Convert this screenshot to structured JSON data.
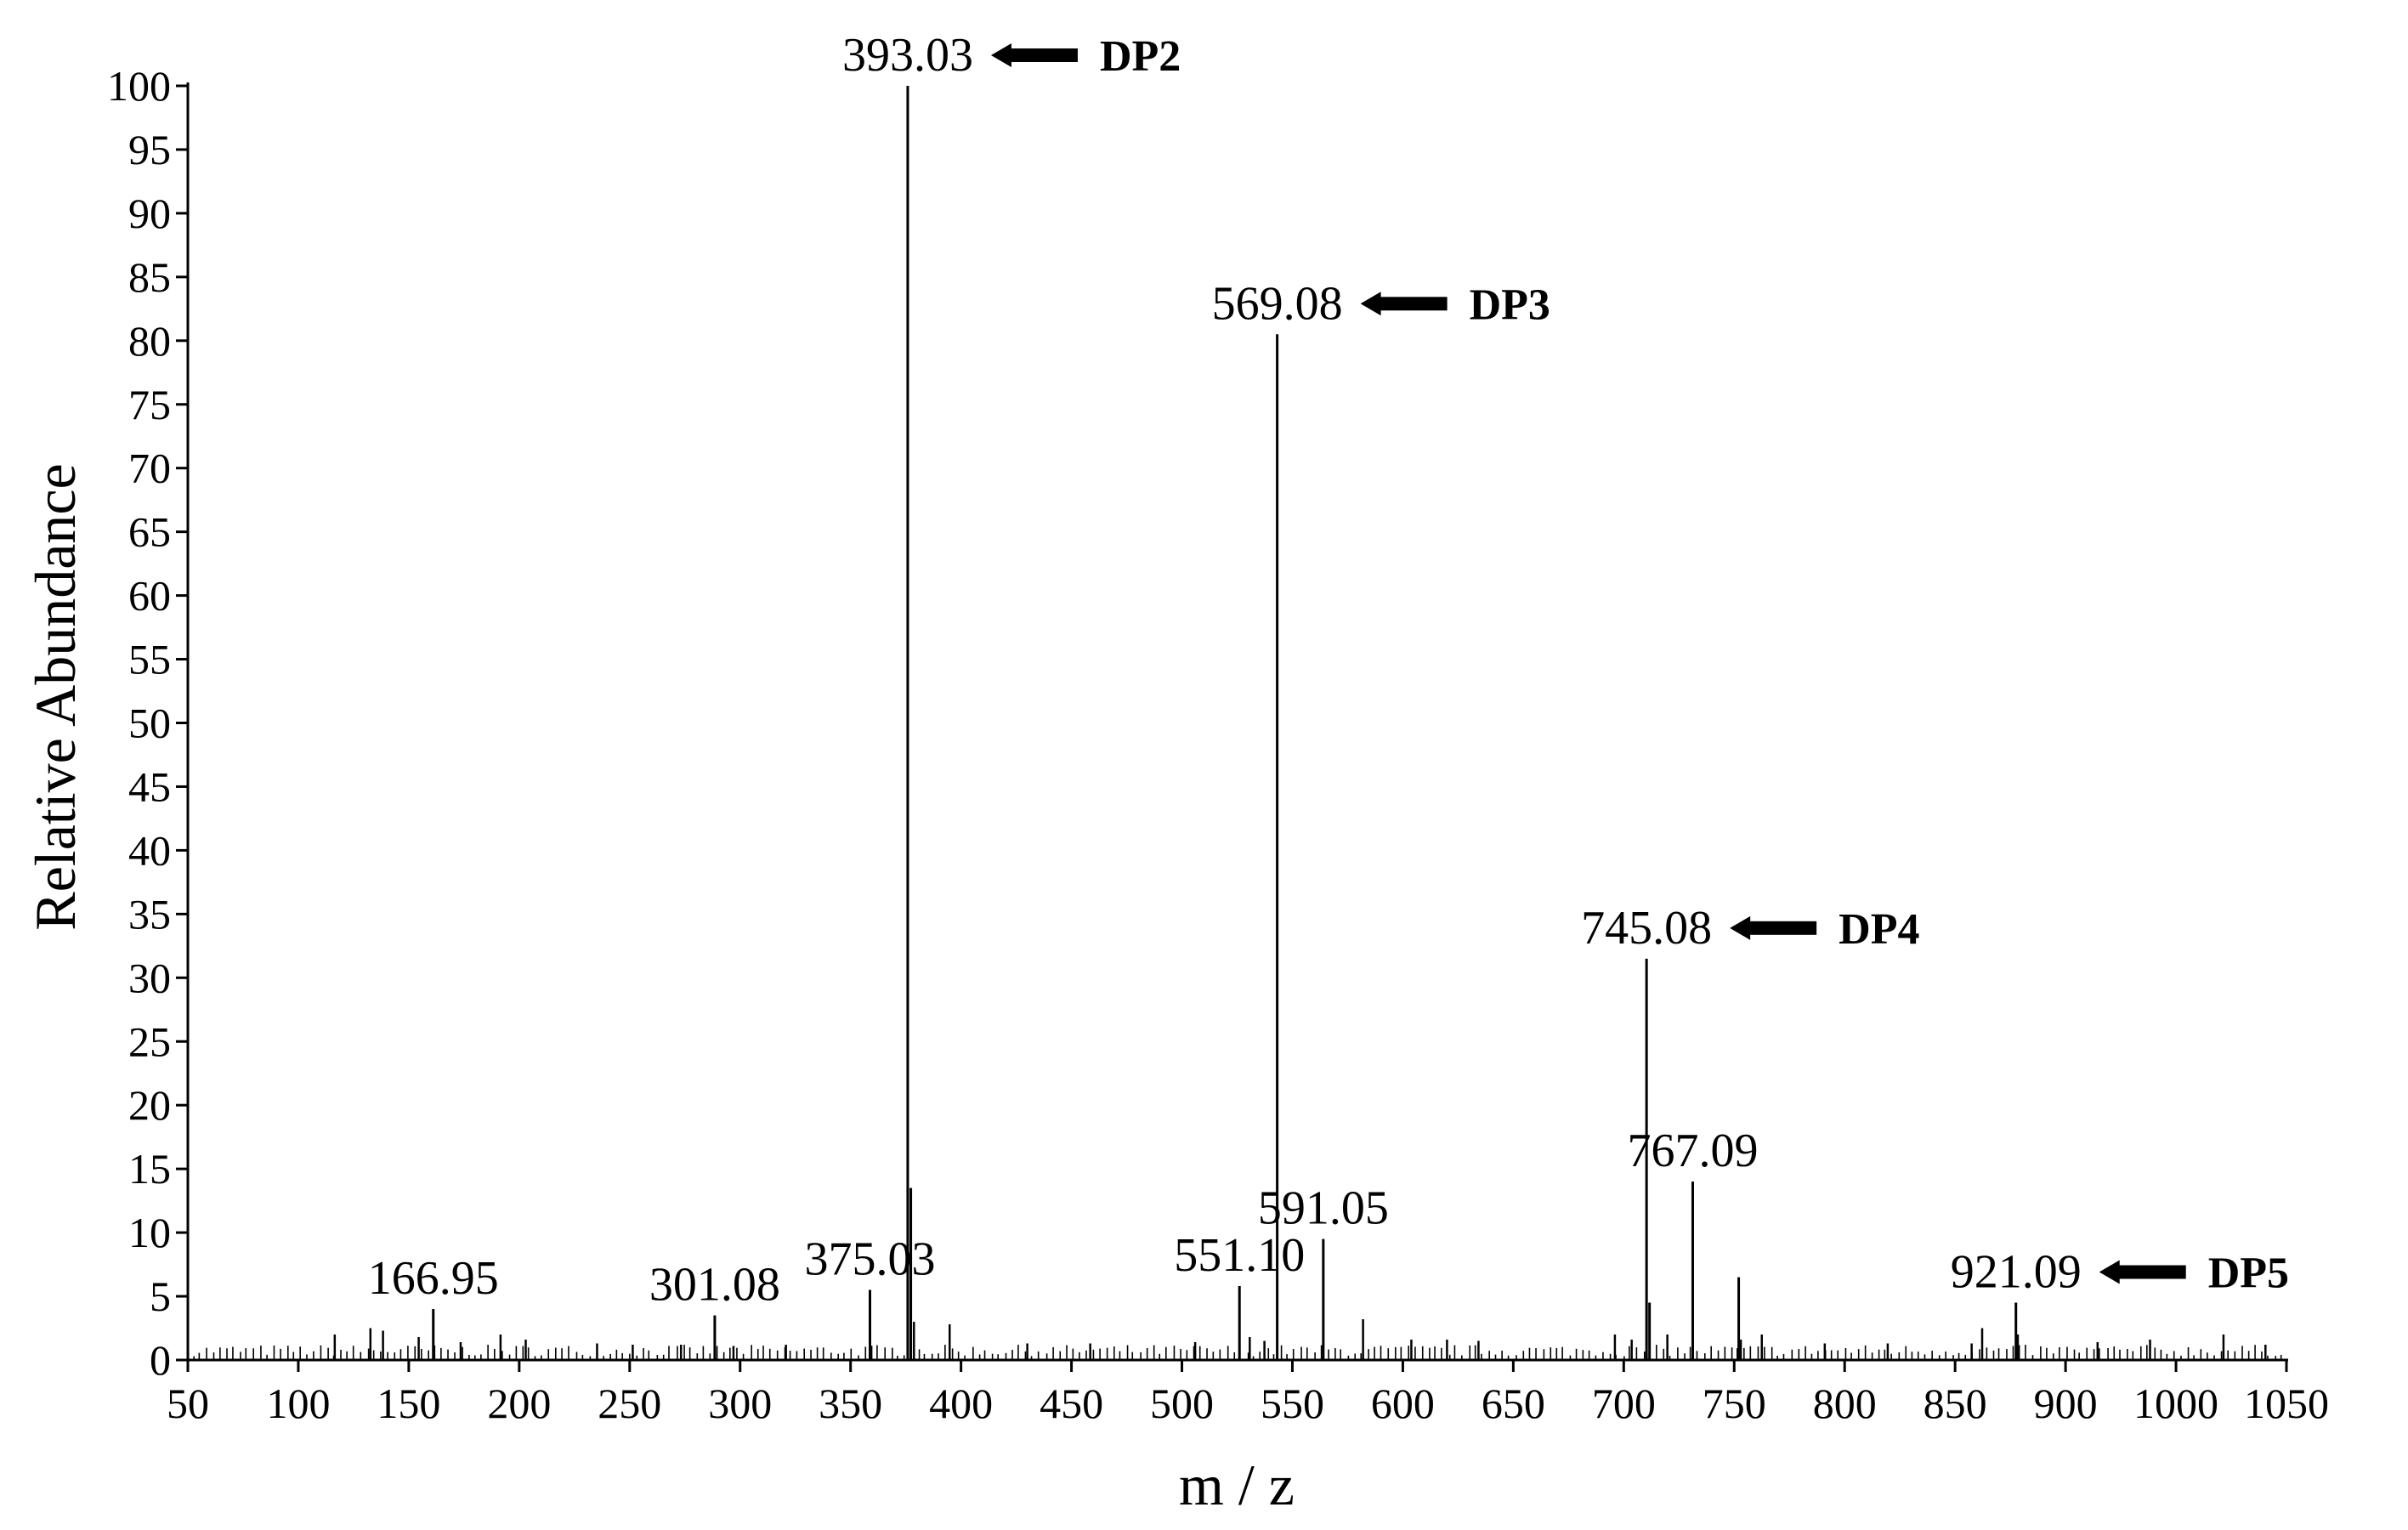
{
  "chart_data": {
    "type": "bar",
    "title": "",
    "xlabel": "m / z",
    "ylabel": "Relative Abundance",
    "xlim": [
      50,
      1050
    ],
    "ylim": [
      0,
      100
    ],
    "x_ticks": [
      50,
      100,
      150,
      200,
      250,
      300,
      350,
      400,
      450,
      500,
      550,
      600,
      650,
      700,
      750,
      800,
      850,
      900,
      1000,
      1050
    ],
    "x_tick_labels": [
      "50",
      "100",
      "150",
      "200",
      "250",
      "300",
      "350",
      "400",
      "450",
      "500",
      "550",
      "600",
      "650",
      "700",
      "750",
      "800",
      "850",
      "900",
      "1000",
      "1050"
    ],
    "y_ticks": [
      0,
      5,
      10,
      15,
      20,
      25,
      30,
      35,
      40,
      45,
      50,
      55,
      60,
      65,
      70,
      75,
      80,
      85,
      90,
      95,
      100
    ],
    "series": [
      {
        "values": [
          {
            "mz": 166.95,
            "intensity": 4.0
          },
          {
            "mz": 301.08,
            "intensity": 3.5
          },
          {
            "mz": 375.03,
            "intensity": 5.5
          },
          {
            "mz": 393.03,
            "intensity": 100
          },
          {
            "mz": 394.5,
            "intensity": 13.5
          },
          {
            "mz": 551.1,
            "intensity": 5.8
          },
          {
            "mz": 569.08,
            "intensity": 80.5
          },
          {
            "mz": 591.05,
            "intensity": 9.5
          },
          {
            "mz": 745.08,
            "intensity": 31.5
          },
          {
            "mz": 746.5,
            "intensity": 4.5
          },
          {
            "mz": 767.09,
            "intensity": 14.0
          },
          {
            "mz": 789.0,
            "intensity": 6.5
          },
          {
            "mz": 921.09,
            "intensity": 4.5
          }
        ]
      }
    ],
    "noise_peaks": [
      [
        120,
        2.0
      ],
      [
        137,
        2.5
      ],
      [
        143,
        2.3
      ],
      [
        160,
        1.8
      ],
      [
        180,
        1.4
      ],
      [
        199,
        2.0
      ],
      [
        211,
        1.6
      ],
      [
        245,
        1.3
      ],
      [
        262,
        1.2
      ],
      [
        285,
        1.2
      ],
      [
        310,
        1.1
      ],
      [
        335,
        1.2
      ],
      [
        396,
        3.0
      ],
      [
        413,
        2.8
      ],
      [
        450,
        1.3
      ],
      [
        480,
        1.3
      ],
      [
        530,
        1.4
      ],
      [
        556,
        1.8
      ],
      [
        563,
        1.5
      ],
      [
        610,
        3.2
      ],
      [
        633,
        1.6
      ],
      [
        650,
        1.6
      ],
      [
        665,
        1.5
      ],
      [
        730,
        2.0
      ],
      [
        738,
        1.6
      ],
      [
        755,
        2.0
      ],
      [
        790,
        1.6
      ],
      [
        800,
        2.0
      ],
      [
        830,
        1.3
      ],
      [
        860,
        1.3
      ],
      [
        900,
        1.3
      ],
      [
        905,
        2.5
      ],
      [
        922,
        2.0
      ],
      [
        960,
        1.4
      ],
      [
        985,
        1.6
      ],
      [
        1020,
        2.0
      ],
      [
        1040,
        1.2
      ]
    ],
    "peak_labels": [
      {
        "mz": 166.95,
        "text": "166.95"
      },
      {
        "mz": 301.08,
        "text": "301.08"
      },
      {
        "mz": 375.03,
        "text": "375.03"
      },
      {
        "mz": 393.03,
        "text": "393.03",
        "annotation": "DP2"
      },
      {
        "mz": 551.1,
        "text": "551.10"
      },
      {
        "mz": 569.08,
        "text": "569.08",
        "annotation": "DP3"
      },
      {
        "mz": 591.05,
        "text": "591.05"
      },
      {
        "mz": 745.08,
        "text": "745.08",
        "annotation": "DP4"
      },
      {
        "mz": 767.09,
        "text": "767.09"
      },
      {
        "mz": 921.09,
        "text": "921.09",
        "annotation": "DP5"
      }
    ],
    "grid": false,
    "legend": "none",
    "colors": {
      "line": "#000000"
    }
  }
}
